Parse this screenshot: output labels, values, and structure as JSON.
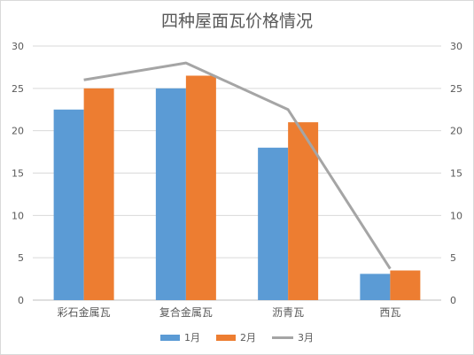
{
  "chart_data": {
    "type": "bar",
    "title": "四种屋面瓦价格情况",
    "categories": [
      "彩石金属瓦",
      "复合金属瓦",
      "沥青瓦",
      "西瓦"
    ],
    "series": [
      {
        "name": "1月",
        "type": "bar",
        "color": "#5b9bd5",
        "axis": "left",
        "values": [
          22.5,
          25,
          18,
          3.1
        ]
      },
      {
        "name": "2月",
        "type": "bar",
        "color": "#ed7d31",
        "axis": "left",
        "values": [
          25,
          26.5,
          21,
          3.5
        ]
      },
      {
        "name": "3月",
        "type": "line",
        "color": "#a5a5a5",
        "axis": "right",
        "values": [
          26,
          28,
          22.5,
          3.7
        ]
      }
    ],
    "ylim": [
      0,
      30
    ],
    "yticks": [
      0,
      5,
      10,
      15,
      20,
      25,
      30
    ],
    "y2lim": [
      0,
      30
    ],
    "y2ticks": [
      0,
      5,
      10,
      15,
      20,
      25,
      30
    ],
    "grid": true,
    "legend_position": "bottom",
    "xlabel": "",
    "ylabel": ""
  }
}
